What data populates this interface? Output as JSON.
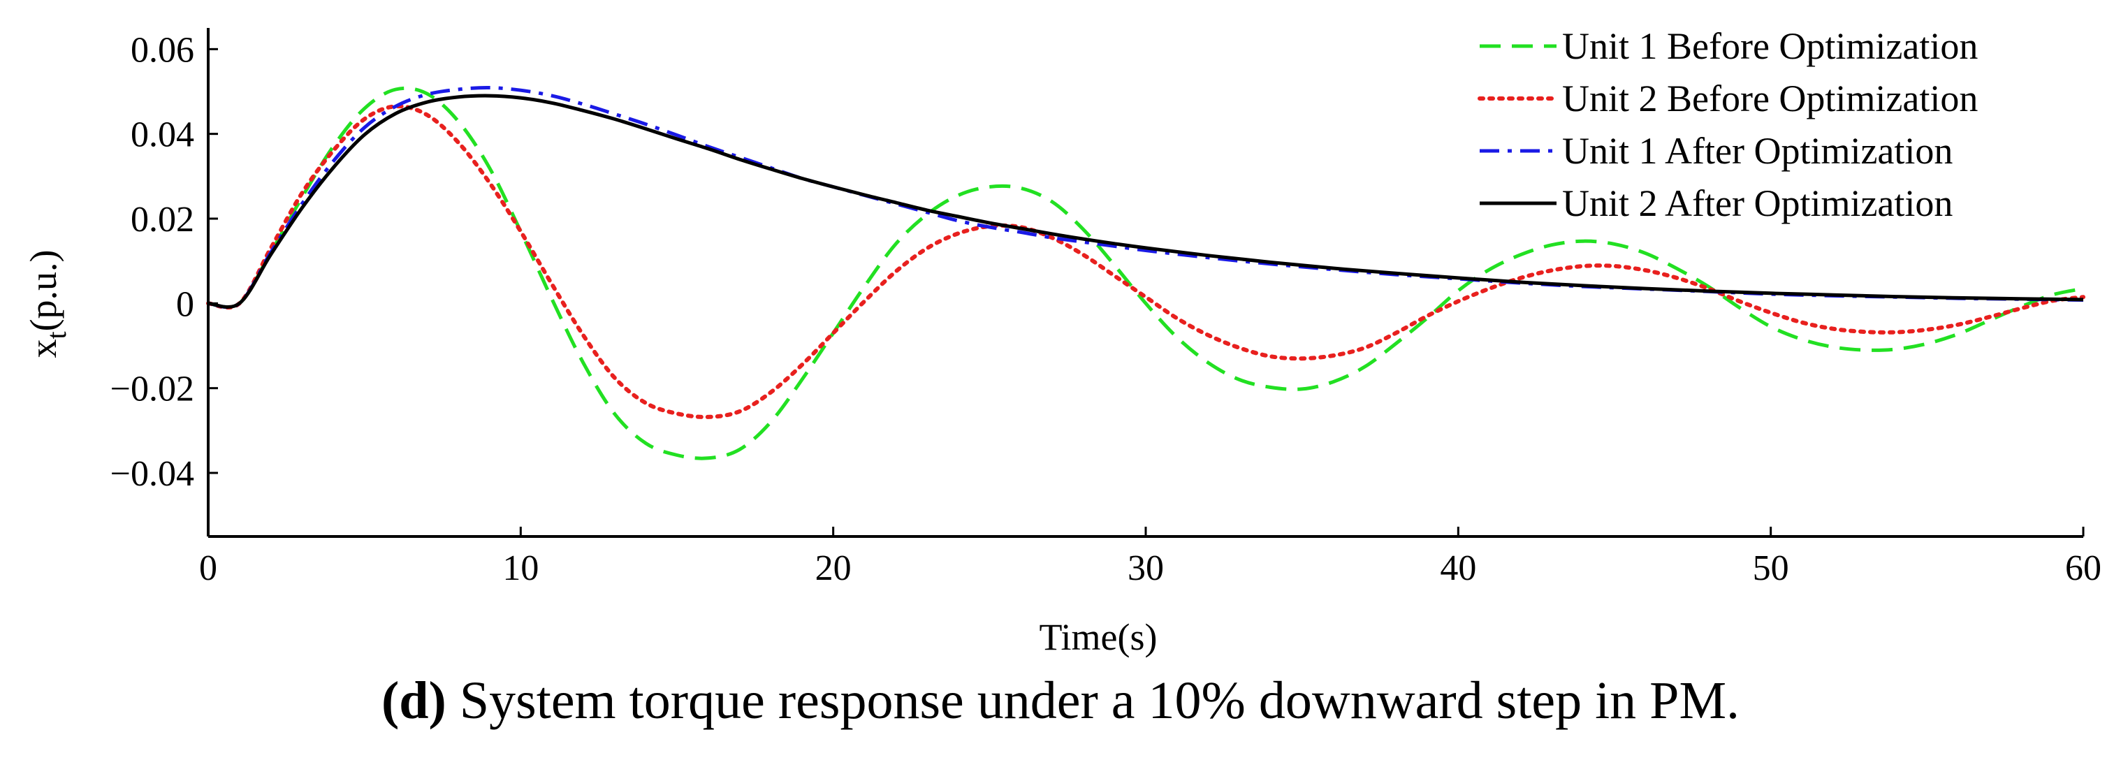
{
  "chart_data": {
    "type": "line",
    "title": "",
    "xlabel": "Time(s)",
    "ylabel_main": "x",
    "ylabel_sub": "t",
    "ylabel_unit": "(p.u.)",
    "xlim": [
      0,
      60
    ],
    "ylim": [
      -0.055,
      0.065
    ],
    "xticks": [
      0,
      10,
      20,
      30,
      40,
      50,
      60
    ],
    "xtick_labels": [
      "0",
      "10",
      "20",
      "30",
      "40",
      "50",
      "60"
    ],
    "yticks": [
      0.06,
      0.04,
      0.02,
      0,
      -0.02,
      -0.04
    ],
    "ytick_labels": [
      "0.06",
      "0.04",
      "0.02",
      "0",
      "−0.02",
      "−0.04"
    ],
    "grid": false,
    "legend_position": "top-right",
    "series": [
      {
        "name": "Unit 1 Before Optimization",
        "color": "#22e022",
        "style": "dashed",
        "points": [
          [
            0,
            0
          ],
          [
            1,
            0
          ],
          [
            2,
            0.012
          ],
          [
            3,
            0.025
          ],
          [
            4,
            0.037
          ],
          [
            5,
            0.046
          ],
          [
            6,
            0.0505
          ],
          [
            7,
            0.0495
          ],
          [
            8,
            0.043
          ],
          [
            9,
            0.032
          ],
          [
            10,
            0.017
          ],
          [
            11,
            0.001
          ],
          [
            12,
            -0.014
          ],
          [
            13,
            -0.026
          ],
          [
            14,
            -0.033
          ],
          [
            15,
            -0.0358
          ],
          [
            16,
            -0.0365
          ],
          [
            17,
            -0.0345
          ],
          [
            18,
            -0.028
          ],
          [
            19,
            -0.018
          ],
          [
            20,
            -0.007
          ],
          [
            21,
            0.004
          ],
          [
            22,
            0.014
          ],
          [
            23,
            0.021
          ],
          [
            24,
            0.0255
          ],
          [
            25,
            0.0275
          ],
          [
            26,
            0.0272
          ],
          [
            27,
            0.024
          ],
          [
            28,
            0.0175
          ],
          [
            29,
            0.009
          ],
          [
            30,
            0.0
          ],
          [
            31,
            -0.008
          ],
          [
            32,
            -0.014
          ],
          [
            33,
            -0.018
          ],
          [
            34,
            -0.0198
          ],
          [
            35,
            -0.0202
          ],
          [
            36,
            -0.0185
          ],
          [
            37,
            -0.015
          ],
          [
            38,
            -0.0095
          ],
          [
            39,
            -0.0035
          ],
          [
            40,
            0.003
          ],
          [
            41,
            0.008
          ],
          [
            42,
            0.0115
          ],
          [
            43,
            0.0138
          ],
          [
            44,
            0.0147
          ],
          [
            45,
            0.014
          ],
          [
            46,
            0.0118
          ],
          [
            47,
            0.0082
          ],
          [
            48,
            0.004
          ],
          [
            49,
            -0.001
          ],
          [
            50,
            -0.0055
          ],
          [
            51,
            -0.0085
          ],
          [
            52,
            -0.0103
          ],
          [
            53,
            -0.011
          ],
          [
            54,
            -0.0108
          ],
          [
            55,
            -0.0095
          ],
          [
            56,
            -0.0072
          ],
          [
            57,
            -0.004
          ],
          [
            58,
            -0.0008
          ],
          [
            59,
            0.002
          ],
          [
            60,
            0.0035
          ]
        ]
      },
      {
        "name": "Unit 2 Before Optimization",
        "color": "#e8201e",
        "style": "dotted",
        "points": [
          [
            0,
            0
          ],
          [
            1,
            0
          ],
          [
            2,
            0.013
          ],
          [
            3,
            0.026
          ],
          [
            4,
            0.036
          ],
          [
            5,
            0.0435
          ],
          [
            6,
            0.0465
          ],
          [
            7,
            0.0445
          ],
          [
            8,
            0.038
          ],
          [
            9,
            0.0285
          ],
          [
            10,
            0.017
          ],
          [
            11,
            0.0045
          ],
          [
            12,
            -0.0075
          ],
          [
            13,
            -0.0175
          ],
          [
            14,
            -0.0235
          ],
          [
            15,
            -0.026
          ],
          [
            16,
            -0.0268
          ],
          [
            17,
            -0.0255
          ],
          [
            18,
            -0.021
          ],
          [
            19,
            -0.0145
          ],
          [
            20,
            -0.007
          ],
          [
            21,
            0.0005
          ],
          [
            22,
            0.0075
          ],
          [
            23,
            0.013
          ],
          [
            24,
            0.0165
          ],
          [
            25,
            0.0182
          ],
          [
            26,
            0.018
          ],
          [
            27,
            0.0155
          ],
          [
            28,
            0.0115
          ],
          [
            29,
            0.0065
          ],
          [
            30,
            0.0015
          ],
          [
            31,
            -0.0035
          ],
          [
            32,
            -0.0075
          ],
          [
            33,
            -0.0105
          ],
          [
            34,
            -0.0125
          ],
          [
            35,
            -0.013
          ],
          [
            36,
            -0.0123
          ],
          [
            37,
            -0.0105
          ],
          [
            38,
            -0.007
          ],
          [
            39,
            -0.003
          ],
          [
            40,
            0.0005
          ],
          [
            41,
            0.0035
          ],
          [
            42,
            0.006
          ],
          [
            43,
            0.0078
          ],
          [
            44,
            0.0088
          ],
          [
            45,
            0.0088
          ],
          [
            46,
            0.0078
          ],
          [
            47,
            0.006
          ],
          [
            48,
            0.0035
          ],
          [
            49,
            0.0005
          ],
          [
            50,
            -0.0022
          ],
          [
            51,
            -0.0045
          ],
          [
            52,
            -0.006
          ],
          [
            53,
            -0.0067
          ],
          [
            54,
            -0.0068
          ],
          [
            55,
            -0.0062
          ],
          [
            56,
            -0.005
          ],
          [
            57,
            -0.0032
          ],
          [
            58,
            -0.0012
          ],
          [
            59,
            0.0006
          ],
          [
            60,
            0.0015
          ]
        ]
      },
      {
        "name": "Unit 1 After Optimization",
        "color": "#1a1ae6",
        "style": "dashdot",
        "points": [
          [
            0,
            0
          ],
          [
            1,
            0
          ],
          [
            2,
            0.012
          ],
          [
            3,
            0.0235
          ],
          [
            4,
            0.0335
          ],
          [
            5,
            0.0415
          ],
          [
            6,
            0.0465
          ],
          [
            7,
            0.0493
          ],
          [
            8,
            0.0505
          ],
          [
            9,
            0.0509
          ],
          [
            10,
            0.0503
          ],
          [
            11,
            0.049
          ],
          [
            12,
            0.047
          ],
          [
            13,
            0.0447
          ],
          [
            14,
            0.0423
          ],
          [
            15,
            0.0397
          ],
          [
            16,
            0.037
          ],
          [
            17,
            0.0345
          ],
          [
            18,
            0.032
          ],
          [
            19,
            0.0295
          ],
          [
            20,
            0.0275
          ],
          [
            21,
            0.0255
          ],
          [
            22,
            0.0235
          ],
          [
            23,
            0.0215
          ],
          [
            24,
            0.0195
          ],
          [
            25,
            0.018
          ],
          [
            26,
            0.0168
          ],
          [
            27,
            0.0155
          ],
          [
            28,
            0.0145
          ],
          [
            29,
            0.0135
          ],
          [
            30,
            0.0125
          ],
          [
            32,
            0.0108
          ],
          [
            34,
            0.0093
          ],
          [
            36,
            0.008
          ],
          [
            38,
            0.0068
          ],
          [
            40,
            0.0058
          ],
          [
            42,
            0.0048
          ],
          [
            44,
            0.004
          ],
          [
            46,
            0.0034
          ],
          [
            48,
            0.0028
          ],
          [
            50,
            0.0022
          ],
          [
            52,
            0.0018
          ],
          [
            54,
            0.0015
          ],
          [
            56,
            0.0012
          ],
          [
            58,
            0.001
          ],
          [
            60,
            0.0008
          ]
        ]
      },
      {
        "name": "Unit 2 After Optimization",
        "color": "#000000",
        "style": "solid",
        "points": [
          [
            0,
            0
          ],
          [
            1,
            0
          ],
          [
            2,
            0.0115
          ],
          [
            3,
            0.0225
          ],
          [
            4,
            0.032
          ],
          [
            5,
            0.0398
          ],
          [
            6,
            0.0448
          ],
          [
            7,
            0.0475
          ],
          [
            8,
            0.0487
          ],
          [
            9,
            0.049
          ],
          [
            10,
            0.0485
          ],
          [
            11,
            0.0473
          ],
          [
            12,
            0.0455
          ],
          [
            13,
            0.0435
          ],
          [
            14,
            0.0412
          ],
          [
            15,
            0.0388
          ],
          [
            16,
            0.0365
          ],
          [
            17,
            0.034
          ],
          [
            18,
            0.0317
          ],
          [
            19,
            0.0295
          ],
          [
            20,
            0.0275
          ],
          [
            21,
            0.0256
          ],
          [
            22,
            0.0238
          ],
          [
            23,
            0.022
          ],
          [
            24,
            0.0205
          ],
          [
            25,
            0.019
          ],
          [
            26,
            0.0177
          ],
          [
            27,
            0.0164
          ],
          [
            28,
            0.0152
          ],
          [
            29,
            0.0141
          ],
          [
            30,
            0.0131
          ],
          [
            32,
            0.0113
          ],
          [
            34,
            0.0097
          ],
          [
            36,
            0.0083
          ],
          [
            38,
            0.0071
          ],
          [
            40,
            0.006
          ],
          [
            42,
            0.005
          ],
          [
            44,
            0.0042
          ],
          [
            46,
            0.0035
          ],
          [
            48,
            0.0029
          ],
          [
            50,
            0.0024
          ],
          [
            52,
            0.002
          ],
          [
            54,
            0.0016
          ],
          [
            56,
            0.0013
          ],
          [
            58,
            0.0011
          ],
          [
            60,
            0.0009
          ]
        ]
      }
    ]
  },
  "caption": {
    "label": "(d)",
    "text": " System torque response under a 10% downward step in PM."
  }
}
